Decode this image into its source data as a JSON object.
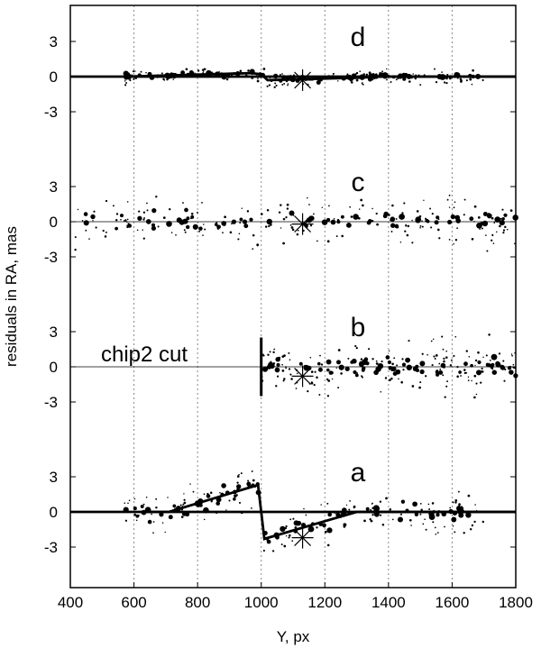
{
  "chart_data": {
    "type": "scatter",
    "xlabel": "Y, px",
    "ylabel": "residuals in RA, mas",
    "xlim": [
      400,
      1800
    ],
    "x_ticks": [
      400,
      600,
      800,
      1000,
      1200,
      1400,
      1600,
      1800
    ],
    "x_tick_labels": [
      "400",
      "600",
      "800",
      "1000",
      "1200",
      "1400",
      "1600",
      "1800"
    ],
    "grid": "vertical dotted lines at x ticks",
    "panels": [
      {
        "label": "d",
        "ylim": [
          -5,
          6
        ],
        "y_ticks": [
          3,
          0,
          -3
        ],
        "y_tick_labels": [
          "3",
          "0",
          "-3"
        ],
        "zero_line": "thick",
        "model_line": [
          [
            570,
            0
          ],
          [
            970,
            0.3
          ],
          [
            1000,
            0.2
          ],
          [
            1020,
            -0.3
          ],
          [
            1300,
            -0.1
          ],
          [
            1380,
            0
          ],
          [
            1800,
            0
          ]
        ],
        "x_range": [
          570,
          1700
        ],
        "spread": 0.45,
        "star": [
          1130,
          -0.3
        ]
      },
      {
        "label": "c",
        "ylim": [
          -5,
          6
        ],
        "y_ticks": [
          3,
          0,
          -3
        ],
        "y_tick_labels": [
          "3",
          "0",
          "-3"
        ],
        "zero_line": "thin",
        "x_range": [
          400,
          1800
        ],
        "spread": 1.6,
        "star": [
          1130,
          -0.2
        ]
      },
      {
        "label": "b",
        "ylim": [
          -5,
          6
        ],
        "y_ticks": [
          3,
          0,
          -3
        ],
        "y_tick_labels": [
          "3",
          "0",
          "-3"
        ],
        "zero_line": "thin",
        "annotation": "chip2 cut",
        "cut_line": [
          [
            1000,
            2.5
          ],
          [
            1000,
            -2.5
          ]
        ],
        "x_range": [
          1000,
          1800
        ],
        "spread": 1.5,
        "star": [
          1130,
          -0.8
        ]
      },
      {
        "label": "a",
        "ylim": [
          -5,
          6
        ],
        "y_ticks": [
          3,
          0,
          -3
        ],
        "y_tick_labels": [
          "3",
          "0",
          "-3"
        ],
        "zero_line": "thick",
        "model_line": [
          [
            620,
            0
          ],
          [
            710,
            0
          ],
          [
            990,
            2.3
          ],
          [
            1010,
            -2.3
          ],
          [
            1300,
            0
          ],
          [
            1800,
            0
          ]
        ],
        "x_range": [
          570,
          1700
        ],
        "spread": 1.4,
        "star": [
          1130,
          -2.2
        ]
      }
    ]
  }
}
